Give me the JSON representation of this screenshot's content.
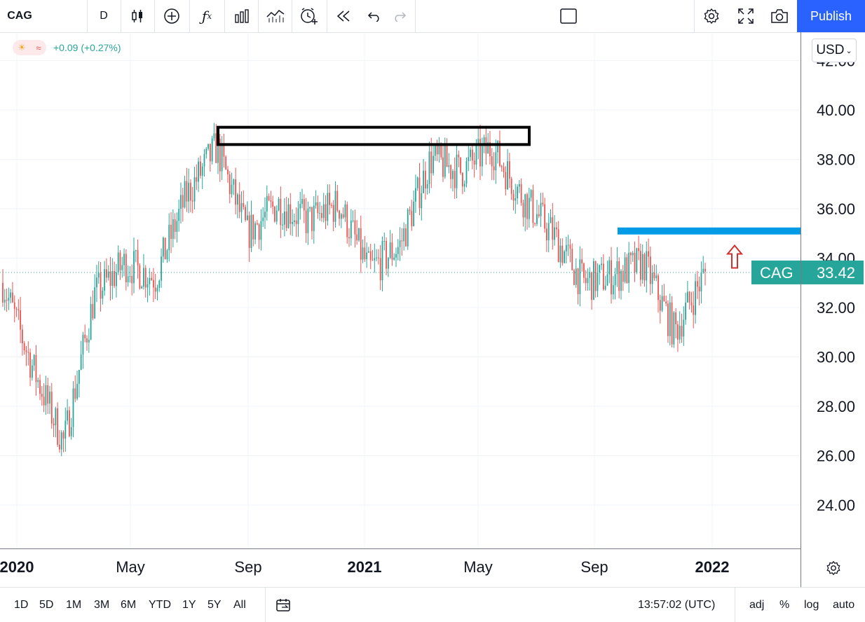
{
  "toolbar": {
    "symbol": "CAG",
    "interval": "D",
    "publish_label": "Publish",
    "icons": [
      "candles-icon",
      "add-indicator-icon",
      "fx-icon",
      "bar-chart-icon",
      "compare-icon",
      "alert-icon",
      "replay-icon",
      "undo-icon",
      "redo-icon",
      "layout-icon",
      "settings-icon",
      "fullscreen-icon",
      "camera-icon"
    ]
  },
  "legend": {
    "change": "+0.09 (+0.27%)"
  },
  "currency": "USD",
  "price_label": {
    "symbol": "CAG",
    "value": "33.42"
  },
  "bottom": {
    "ranges": [
      "1D",
      "5D",
      "1M",
      "3M",
      "6M",
      "YTD",
      "1Y",
      "5Y",
      "All"
    ],
    "time": "13:57:02 (UTC)",
    "adj": "adj",
    "percent": "%",
    "log": "log",
    "auto": "auto"
  },
  "colors": {
    "up": "#26a69a",
    "down": "#ef5350",
    "accent": "#2962ff",
    "resistance": "#039be5",
    "arrow": "#d32f2f"
  },
  "chart_data": {
    "type": "candlestick",
    "title": "",
    "y_ticks": [
      "24.00",
      "26.00",
      "28.00",
      "30.00",
      "32.00",
      "34.00",
      "36.00",
      "38.00",
      "40.00",
      "42.00"
    ],
    "x_ticks": [
      "2020",
      "May",
      "Sep",
      "2021",
      "May",
      "Sep",
      "2022"
    ],
    "ylim": [
      22.3,
      42.8
    ],
    "last_price": 33.42,
    "resistance_level": 35.1,
    "annotations": [
      "resistance-box-38.6-39.3",
      "horizontal-line-35.1",
      "up-arrow"
    ],
    "x": [
      "2020-01",
      "2020-02",
      "2020-03",
      "2020-04",
      "2020-05",
      "2020-06",
      "2020-07",
      "2020-08",
      "2020-09",
      "2020-10",
      "2020-11",
      "2020-12",
      "2021-01",
      "2021-02",
      "2021-03",
      "2021-04",
      "2021-05",
      "2021-06",
      "2021-07",
      "2021-08",
      "2021-09",
      "2021-10",
      "2021-11",
      "2021-12"
    ],
    "close": [
      33.0,
      29.5,
      26.5,
      32.5,
      33.8,
      33.2,
      36.5,
      38.5,
      35.0,
      36.2,
      35.5,
      36.2,
      33.5,
      34.5,
      38.0,
      37.5,
      38.5,
      36.5,
      35.0,
      33.0,
      33.3,
      33.8,
      31.0,
      33.4
    ],
    "price_range": [
      22.9,
      39.3
    ]
  }
}
